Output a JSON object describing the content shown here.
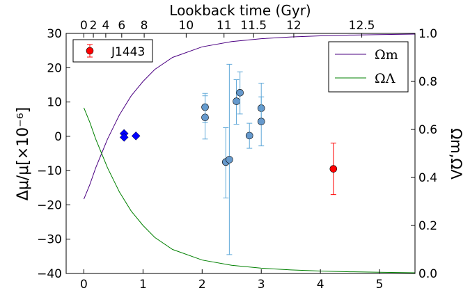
{
  "chart_data": {
    "type": "scatter",
    "top_axis": {
      "label": "Lookback time (Gyr)",
      "ticks": [
        {
          "label": "0",
          "z": 0.0
        },
        {
          "label": "2",
          "z": 0.16
        },
        {
          "label": "4",
          "z": 0.37
        },
        {
          "label": "6",
          "z": 0.64
        },
        {
          "label": "8",
          "z": 1.02
        },
        {
          "label": "10",
          "z": 1.73
        },
        {
          "label": "11",
          "z": 2.37
        },
        {
          "label": "11.5",
          "z": 2.87
        },
        {
          "label": "12",
          "z": 3.55
        },
        {
          "label": "12.5",
          "z": 4.7
        }
      ]
    },
    "xlim": [
      -0.3,
      5.6
    ],
    "x_ticks": [
      "0",
      "1",
      "2",
      "3",
      "4",
      "5"
    ],
    "left_axis": {
      "label": "Δμ/μ[×10⁻⁶]",
      "ylim": [
        -40,
        30
      ],
      "ticks": [
        "−40",
        "−30",
        "−20",
        "−10",
        "0",
        "10",
        "20",
        "30"
      ]
    },
    "right_axis": {
      "label": "Ωm,ΩΛ",
      "ylim": [
        0.0,
        1.0
      ],
      "ticks": [
        "0.0",
        "0.2",
        "0.4",
        "0.6",
        "0.8",
        "1.0"
      ]
    },
    "legend_left": {
      "entries": [
        {
          "label": "J1443",
          "color": "#ff0000"
        }
      ]
    },
    "legend_right": {
      "entries": [
        {
          "label": "Ωm",
          "color": "#4b0082"
        },
        {
          "label": "ΩΛ",
          "color": "#008000"
        }
      ]
    },
    "series": [
      {
        "name": "Ωm",
        "kind": "curve",
        "axis": "right",
        "color": "#4b0082",
        "x": [
          0.0,
          0.1,
          0.2,
          0.3,
          0.4,
          0.5,
          0.6,
          0.8,
          1.0,
          1.2,
          1.5,
          2.0,
          2.5,
          3.0,
          3.5,
          4.0,
          4.5,
          5.0,
          5.6
        ],
        "y": [
          0.31,
          0.37,
          0.44,
          0.5,
          0.56,
          0.61,
          0.66,
          0.74,
          0.8,
          0.85,
          0.9,
          0.944,
          0.966,
          0.978,
          0.985,
          0.99,
          0.993,
          0.995,
          0.997
        ]
      },
      {
        "name": "ΩΛ",
        "kind": "curve",
        "axis": "right",
        "color": "#008000",
        "x": [
          0.0,
          0.1,
          0.2,
          0.3,
          0.4,
          0.5,
          0.6,
          0.8,
          1.0,
          1.2,
          1.5,
          2.0,
          2.5,
          3.0,
          3.5,
          4.0,
          4.5,
          5.0,
          5.6
        ],
        "y": [
          0.69,
          0.63,
          0.56,
          0.5,
          0.44,
          0.39,
          0.34,
          0.26,
          0.2,
          0.15,
          0.1,
          0.056,
          0.034,
          0.022,
          0.015,
          0.01,
          0.007,
          0.005,
          0.003
        ]
      },
      {
        "name": "",
        "kind": "errorbar",
        "axis": "left",
        "color": "#6699cc",
        "ecolor": "#5fa8d8",
        "marker": "circle",
        "points": [
          {
            "x": 2.05,
            "y": 8.5,
            "lo": 4.0,
            "hi": 12.5
          },
          {
            "x": 2.05,
            "y": 5.5,
            "lo": -0.8,
            "hi": 11.8
          },
          {
            "x": 2.4,
            "y": -7.5,
            "lo": -18.0,
            "hi": 2.5
          },
          {
            "x": 2.46,
            "y": -6.8,
            "lo": -34.5,
            "hi": 21.0
          },
          {
            "x": 2.58,
            "y": 10.2,
            "lo": 3.5,
            "hi": 16.5
          },
          {
            "x": 2.64,
            "y": 12.7,
            "lo": 6.5,
            "hi": 18.8
          },
          {
            "x": 2.8,
            "y": 0.2,
            "lo": -3.5,
            "hi": 3.8
          },
          {
            "x": 3.0,
            "y": 8.2,
            "lo": 4.5,
            "hi": 11.5
          },
          {
            "x": 3.0,
            "y": 4.3,
            "lo": -2.8,
            "hi": 15.5
          }
        ]
      },
      {
        "name": "",
        "kind": "scatter",
        "axis": "left",
        "color": "#0000ff",
        "marker": "diamond",
        "points": [
          {
            "x": 0.68,
            "y": 0.8
          },
          {
            "x": 0.68,
            "y": -0.3
          },
          {
            "x": 0.88,
            "y": 0.1
          }
        ]
      },
      {
        "name": "J1443",
        "kind": "errorbar",
        "axis": "left",
        "color": "#ff0000",
        "ecolor": "#ff0000",
        "marker": "circle",
        "points": [
          {
            "x": 4.22,
            "y": -9.5,
            "lo": -17.0,
            "hi": -2.0
          }
        ]
      }
    ]
  }
}
